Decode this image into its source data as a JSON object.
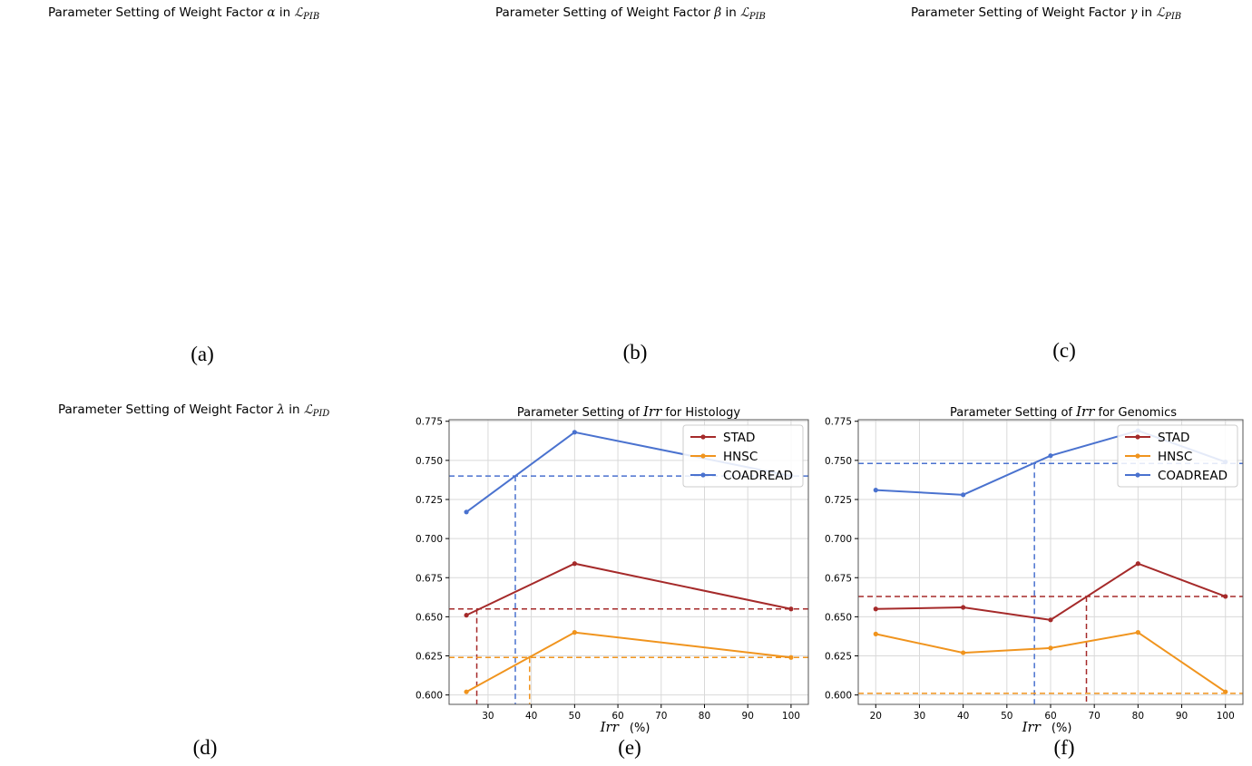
{
  "panels": [
    {
      "id": "a",
      "label": "(a)",
      "title_prefix": "Parameter Setting of Weight Factor ",
      "symbol": "α",
      "mid": " in ",
      "loss": "ℒ",
      "sub": "PIB"
    },
    {
      "id": "b",
      "label": "(b)",
      "title_prefix": "Parameter Setting of Weight Factor ",
      "symbol": "β",
      "mid": " in ",
      "loss": "ℒ",
      "sub": "PIB"
    },
    {
      "id": "c",
      "label": "(c)",
      "title_prefix": "Parameter Setting of Weight Factor ",
      "symbol": "γ",
      "mid": " in ",
      "loss": "ℒ",
      "sub": "PIB"
    },
    {
      "id": "d",
      "label": "(d)",
      "title_prefix": "Parameter Setting of Weight Factor ",
      "symbol": "λ",
      "mid": " in ",
      "loss": "ℒ",
      "sub": "PID"
    },
    {
      "id": "e",
      "label": "(e)"
    },
    {
      "id": "f",
      "label": "(f)"
    }
  ],
  "colors": {
    "STAD": "#a52a2a",
    "HNSC": "#f0941e",
    "COADREAD": "#4a72cf",
    "grid": "#d9d9d9",
    "frame": "#555555"
  },
  "chart_data": [
    {
      "type": "line",
      "title_prefix": "Parameter Setting of ",
      "title_var": "Irr",
      "title_suffix": " for Histology",
      "xlabel": "Irr",
      "xunit": "(%)",
      "xlim": [
        21,
        104
      ],
      "ylim": [
        0.594,
        0.776
      ],
      "xticks": [
        30,
        40,
        50,
        60,
        70,
        80,
        90,
        100
      ],
      "yticks": [
        0.6,
        0.625,
        0.65,
        0.675,
        0.7,
        0.725,
        0.75,
        0.775
      ],
      "legend": "top-right",
      "series": [
        {
          "name": "STAD",
          "x": [
            25,
            50,
            100
          ],
          "values": [
            0.651,
            0.684,
            0.655
          ]
        },
        {
          "name": "HNSC",
          "x": [
            25,
            50,
            100
          ],
          "values": [
            0.602,
            0.64,
            0.624
          ]
        },
        {
          "name": "COADREAD",
          "x": [
            25,
            50,
            100
          ],
          "values": [
            0.717,
            0.768,
            0.74
          ]
        }
      ],
      "reference_lines": [
        {
          "series": "COADREAD",
          "y": 0.74,
          "x": 36.3
        },
        {
          "series": "STAD",
          "y": 0.655,
          "x": 27.4
        },
        {
          "series": "HNSC",
          "y": 0.624,
          "x": 39.6
        }
      ]
    },
    {
      "type": "line",
      "title_prefix": "Parameter Setting of ",
      "title_var": "Irr",
      "title_suffix": " for Genomics",
      "xlabel": "Irr",
      "xunit": "(%)",
      "xlim": [
        16,
        104
      ],
      "ylim": [
        0.594,
        0.776
      ],
      "xticks": [
        20,
        30,
        40,
        50,
        60,
        70,
        80,
        90,
        100
      ],
      "yticks": [
        0.6,
        0.625,
        0.65,
        0.675,
        0.7,
        0.725,
        0.75,
        0.775
      ],
      "legend": "top-right",
      "series": [
        {
          "name": "STAD",
          "x": [
            20,
            40,
            60,
            80,
            100
          ],
          "values": [
            0.655,
            0.656,
            0.648,
            0.684,
            0.663
          ]
        },
        {
          "name": "HNSC",
          "x": [
            20,
            40,
            60,
            80,
            100
          ],
          "values": [
            0.639,
            0.627,
            0.63,
            0.64,
            0.602
          ]
        },
        {
          "name": "COADREAD",
          "x": [
            20,
            40,
            60,
            80,
            100
          ],
          "values": [
            0.731,
            0.728,
            0.753,
            0.769,
            0.749
          ]
        }
      ],
      "reference_lines": [
        {
          "series": "COADREAD",
          "y": 0.748,
          "x": 56.3
        },
        {
          "series": "STAD",
          "y": 0.663,
          "x": 68.2
        },
        {
          "series": "HNSC",
          "y": 0.601,
          "x": null
        }
      ]
    }
  ]
}
